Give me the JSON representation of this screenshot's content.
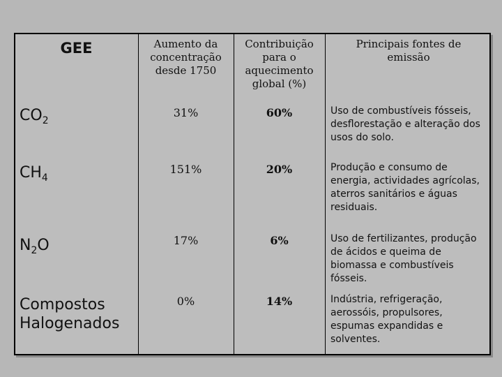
{
  "table": {
    "headers": {
      "gee": "GEE",
      "aumento": "Aumento da\nconcentração\ndesde 1750",
      "contribuicao": "Contribuição\npara o\naquecimento\nglobal (%)",
      "fontes": "Principais fontes de\nemissão"
    },
    "rows": [
      {
        "gas_base": "CO",
        "gas_sub": "2",
        "gas_tail": "",
        "aumento": "31%",
        "contribuicao": "60%",
        "fontes": "Uso de combustíveis fósseis, desflorestação e alteração dos usos do solo."
      },
      {
        "gas_base": "CH",
        "gas_sub": "4",
        "gas_tail": "",
        "aumento": "151%",
        "contribuicao": "20%",
        "fontes": "Produção e consumo de energia, actividades agrícolas, aterros sanitários e águas residuais."
      },
      {
        "gas_base": "N",
        "gas_sub": "2",
        "gas_tail": "O",
        "aumento": "17%",
        "contribuicao": "6%",
        "fontes": "Uso de fertilizantes, produção de ácidos e queima de biomassa e combustíveis fósseis."
      },
      {
        "gas_full": "Compostos\nHalogenados",
        "aumento": "0%",
        "contribuicao": "14%",
        "fontes": "Indústria, refrigeração, aerossóis, propulsores, espumas expandidas e solventes."
      }
    ]
  }
}
